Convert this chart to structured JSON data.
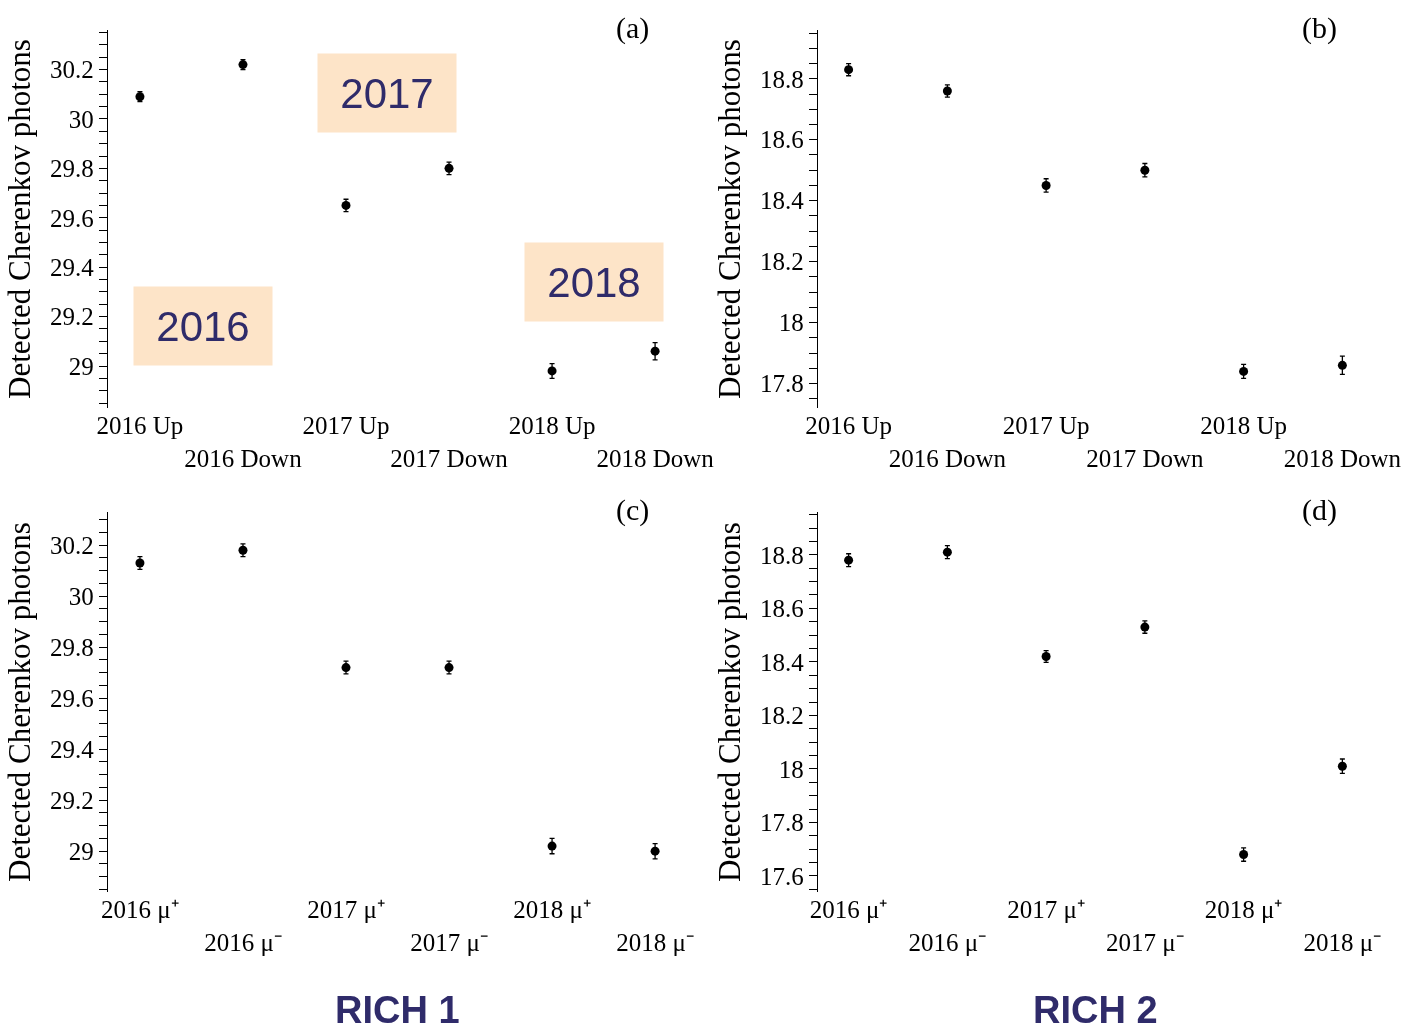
{
  "chart_data": [
    {
      "type": "scatter",
      "title": "(a)",
      "ylabel": "Detected Cherenkov photons",
      "categories": [
        "2016 Up",
        "2016 Down",
        "2017 Up",
        "2017 Down",
        "2018 Up",
        "2018 Down"
      ],
      "values": [
        30.09,
        30.22,
        29.65,
        29.8,
        28.98,
        29.06
      ],
      "errors": [
        0.02,
        0.02,
        0.025,
        0.025,
        0.03,
        0.035
      ],
      "color": "#000000",
      "marker": "circle",
      "ylim": [
        28.83,
        30.36
      ],
      "yticks": [
        {
          "value": 28.85,
          "label": null
        },
        {
          "value": 28.9,
          "label": null
        },
        {
          "value": 28.95,
          "label": null
        },
        29,
        {
          "value": 29.05,
          "label": null
        },
        {
          "value": 29.1,
          "label": null
        },
        {
          "value": 29.15,
          "label": null
        },
        29.2,
        {
          "value": 29.25,
          "label": null
        },
        {
          "value": 29.3,
          "label": null
        },
        {
          "value": 29.35,
          "label": null
        },
        29.4,
        {
          "value": 29.45,
          "label": null
        },
        {
          "value": 29.5,
          "label": null
        },
        {
          "value": 29.55,
          "label": null
        },
        29.6,
        {
          "value": 29.65,
          "label": null
        },
        {
          "value": 29.7,
          "label": null
        },
        {
          "value": 29.75,
          "label": null
        },
        29.8,
        {
          "value": 29.85,
          "label": null
        },
        {
          "value": 29.9,
          "label": null
        },
        {
          "value": 29.95,
          "label": null
        },
        30,
        {
          "value": 30.05,
          "label": null
        },
        {
          "value": 30.1,
          "label": null
        },
        {
          "value": 30.15,
          "label": null
        },
        30.2,
        {
          "value": 30.25,
          "label": null
        },
        {
          "value": 30.3,
          "label": null
        },
        {
          "value": 30.35,
          "label": null
        }
      ],
      "annotations": [
        "2016",
        "2017",
        "2018"
      ]
    },
    {
      "type": "scatter",
      "title": "(b)",
      "ylabel": "Detected Cherenkov photons",
      "categories": [
        "2016 Up",
        "2016 Down",
        "2017 Up",
        "2017 Down",
        "2018 Up",
        "2018 Down"
      ],
      "values": [
        18.83,
        18.76,
        18.45,
        18.5,
        17.84,
        17.86
      ],
      "errors": [
        0.02,
        0.02,
        0.022,
        0.022,
        0.023,
        0.03
      ],
      "color": "#000000",
      "marker": "circle",
      "ylim": [
        17.72,
        18.96
      ],
      "yticks": [
        {
          "value": 17.75,
          "label": null
        },
        17.8,
        {
          "value": 17.85,
          "label": null
        },
        {
          "value": 17.9,
          "label": null
        },
        {
          "value": 17.95,
          "label": null
        },
        18,
        {
          "value": 18.05,
          "label": null
        },
        {
          "value": 18.1,
          "label": null
        },
        {
          "value": 18.15,
          "label": null
        },
        18.2,
        {
          "value": 18.25,
          "label": null
        },
        {
          "value": 18.3,
          "label": null
        },
        {
          "value": 18.35,
          "label": null
        },
        18.4,
        {
          "value": 18.45,
          "label": null
        },
        {
          "value": 18.5,
          "label": null
        },
        {
          "value": 18.55,
          "label": null
        },
        18.6,
        {
          "value": 18.65,
          "label": null
        },
        {
          "value": 18.7,
          "label": null
        },
        {
          "value": 18.75,
          "label": null
        },
        18.8,
        {
          "value": 18.85,
          "label": null
        },
        {
          "value": 18.9,
          "label": null
        },
        {
          "value": 18.95,
          "label": null
        }
      ]
    },
    {
      "type": "scatter",
      "title": "(c)",
      "ylabel": "Detected Cherenkov photons",
      "categories": [
        "2016 μ⁺",
        "2016 μ⁻",
        "2017 μ⁺",
        "2017 μ⁻",
        "2018 μ⁺",
        "2018 μ⁻"
      ],
      "values": [
        30.13,
        30.18,
        29.72,
        29.72,
        29.02,
        29.0
      ],
      "errors": [
        0.025,
        0.025,
        0.025,
        0.025,
        0.03,
        0.03
      ],
      "color": "#000000",
      "marker": "circle",
      "ylim": [
        28.84,
        30.33
      ],
      "yticks": [
        {
          "value": 28.85,
          "label": null
        },
        {
          "value": 28.9,
          "label": null
        },
        {
          "value": 28.95,
          "label": null
        },
        29,
        {
          "value": 29.05,
          "label": null
        },
        {
          "value": 29.1,
          "label": null
        },
        {
          "value": 29.15,
          "label": null
        },
        29.2,
        {
          "value": 29.25,
          "label": null
        },
        {
          "value": 29.3,
          "label": null
        },
        {
          "value": 29.35,
          "label": null
        },
        29.4,
        {
          "value": 29.45,
          "label": null
        },
        {
          "value": 29.5,
          "label": null
        },
        {
          "value": 29.55,
          "label": null
        },
        29.6,
        {
          "value": 29.65,
          "label": null
        },
        {
          "value": 29.7,
          "label": null
        },
        {
          "value": 29.75,
          "label": null
        },
        29.8,
        {
          "value": 29.85,
          "label": null
        },
        {
          "value": 29.9,
          "label": null
        },
        {
          "value": 29.95,
          "label": null
        },
        30,
        {
          "value": 30.05,
          "label": null
        },
        {
          "value": 30.1,
          "label": null
        },
        {
          "value": 30.15,
          "label": null
        },
        30.2,
        {
          "value": 30.25,
          "label": null
        },
        {
          "value": 30.3,
          "label": null
        }
      ],
      "annotations": [
        "RICH 1"
      ]
    },
    {
      "type": "scatter",
      "title": "(d)",
      "ylabel": "Detected Cherenkov photons",
      "categories": [
        "2016 μ⁺",
        "2016 μ⁻",
        "2017 μ⁺",
        "2017 μ⁻",
        "2018 μ⁺",
        "2018 μ⁻"
      ],
      "values": [
        18.78,
        18.81,
        18.42,
        18.53,
        17.68,
        18.01
      ],
      "errors": [
        0.024,
        0.024,
        0.022,
        0.023,
        0.025,
        0.027
      ],
      "color": "#000000",
      "marker": "circle",
      "ylim": [
        17.54,
        18.96
      ],
      "yticks": [
        {
          "value": 17.55,
          "label": null
        },
        17.6,
        {
          "value": 17.65,
          "label": null
        },
        {
          "value": 17.7,
          "label": null
        },
        {
          "value": 17.75,
          "label": null
        },
        17.8,
        {
          "value": 17.85,
          "label": null
        },
        {
          "value": 17.9,
          "label": null
        },
        {
          "value": 17.95,
          "label": null
        },
        18,
        {
          "value": 18.05,
          "label": null
        },
        {
          "value": 18.1,
          "label": null
        },
        {
          "value": 18.15,
          "label": null
        },
        18.2,
        {
          "value": 18.25,
          "label": null
        },
        {
          "value": 18.3,
          "label": null
        },
        {
          "value": 18.35,
          "label": null
        },
        18.4,
        {
          "value": 18.45,
          "label": null
        },
        {
          "value": 18.5,
          "label": null
        },
        {
          "value": 18.55,
          "label": null
        },
        18.6,
        {
          "value": 18.65,
          "label": null
        },
        {
          "value": 18.7,
          "label": null
        },
        {
          "value": 18.75,
          "label": null
        },
        18.8,
        {
          "value": 18.85,
          "label": null
        },
        {
          "value": 18.9,
          "label": null
        },
        {
          "value": 18.95,
          "label": null
        }
      ],
      "annotations": [
        "RICH 2"
      ]
    }
  ]
}
